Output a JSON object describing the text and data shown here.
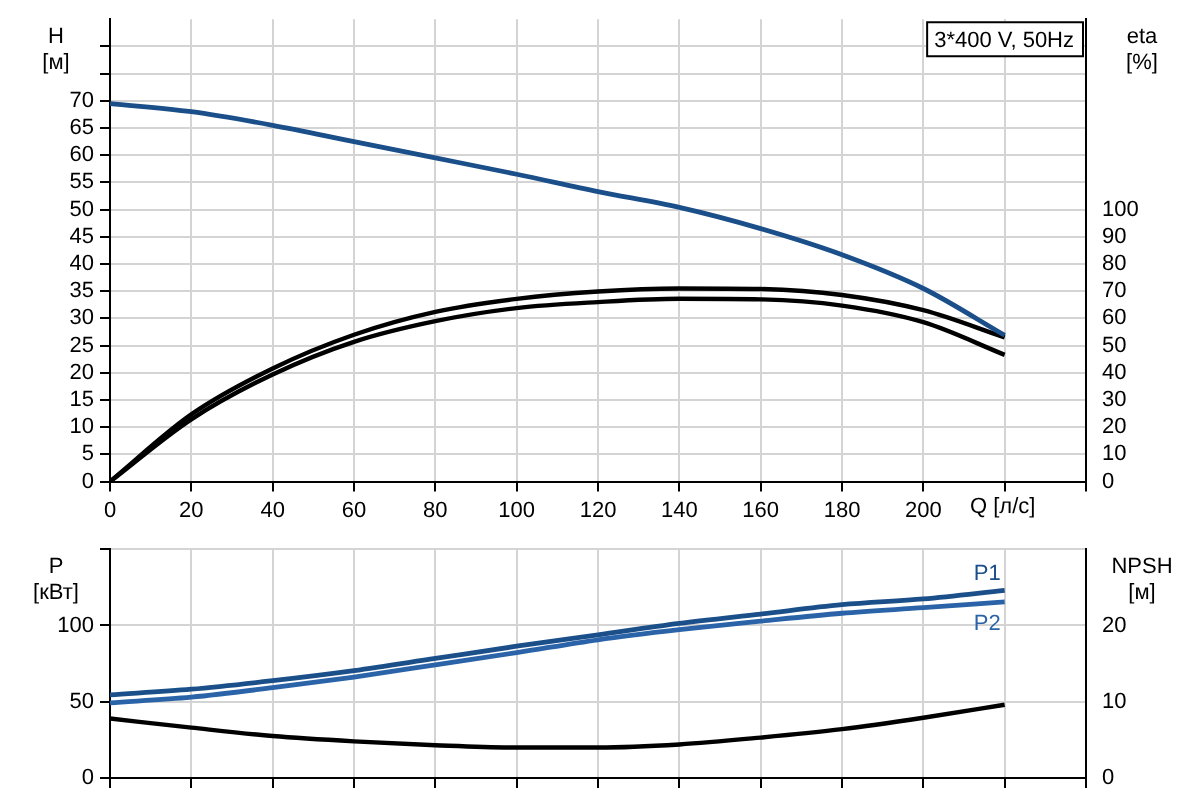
{
  "chart_data": [
    {
      "type": "line",
      "title": "3*400 V, 50Hz",
      "xlabel": "Q [л/с]",
      "ylabel": "H [м]",
      "y2label": "eta [%]",
      "xlim": [
        0,
        240
      ],
      "xticks": [
        0,
        20,
        40,
        60,
        80,
        100,
        120,
        140,
        160,
        180,
        200,
        {
          "value": 220,
          "label": null
        },
        {
          "value": 240,
          "label": null
        }
      ],
      "ylim": [
        0,
        85
      ],
      "yticks": [
        0,
        5,
        10,
        15,
        20,
        25,
        30,
        35,
        40,
        45,
        50,
        55,
        60,
        65,
        70,
        {
          "value": 75,
          "label": null
        },
        {
          "value": 80,
          "label": null
        }
      ],
      "y2lim": [
        0,
        170
      ],
      "y2ticks": [
        0,
        10,
        20,
        30,
        40,
        50,
        60,
        70,
        80,
        90,
        100
      ],
      "grid": true,
      "legend": false,
      "marker": "none",
      "line_style": "solid",
      "series": [
        {
          "color": "#1b4f8a",
          "x": [
            0,
            20,
            40,
            60,
            80,
            100,
            120,
            140,
            160,
            180,
            200,
            220
          ],
          "values": [
            69.5,
            68,
            65.5,
            62.5,
            59.5,
            56.5,
            53.3,
            50.4,
            46.5,
            41.7,
            35.5,
            26.9
          ]
        },
        {
          "color": "#000000",
          "axis": "y2",
          "x": [
            0,
            20,
            40,
            60,
            80,
            100,
            120,
            140,
            160,
            180,
            200,
            220
          ],
          "values": [
            0,
            24.7,
            41.6,
            54,
            62.4,
            67.2,
            69.9,
            71,
            70.8,
            68.6,
            63,
            53
          ]
        },
        {
          "color": "#000000",
          "axis": "y2",
          "x": [
            0,
            20,
            40,
            60,
            80,
            100,
            120,
            140,
            160,
            180,
            200,
            220
          ],
          "values": [
            0,
            22.9,
            39.4,
            51.4,
            59,
            63.8,
            66,
            67.2,
            67,
            64.7,
            58.6,
            46.6
          ]
        }
      ]
    },
    {
      "type": "line",
      "ylabel": "P [кВт]",
      "y2label": "NPSH [м]",
      "xlim": [
        0,
        240
      ],
      "xticks": [
        0,
        20,
        40,
        60,
        80,
        100,
        120,
        140,
        160,
        180,
        200,
        220,
        240
      ],
      "ylim": [
        0,
        150
      ],
      "yticks": [
        0,
        50,
        100,
        {
          "value": 150,
          "label": null
        }
      ],
      "y2lim": [
        0,
        30
      ],
      "y2ticks": [
        0,
        10,
        20
      ],
      "grid": true,
      "legend": false,
      "marker": "none",
      "line_style": "solid",
      "tick_labels": "y",
      "series": [
        {
          "name": "P1",
          "color": "#1b4f8a",
          "x": [
            0,
            20,
            40,
            60,
            80,
            100,
            120,
            140,
            160,
            180,
            200,
            220
          ],
          "values": [
            54.5,
            58.2,
            63.8,
            70.4,
            78.4,
            86.4,
            93.9,
            101.4,
            107.5,
            113.6,
            117.4,
            123
          ]
        },
        {
          "name": "P2",
          "color": "#2a63a8",
          "x": [
            0,
            20,
            40,
            60,
            80,
            100,
            120,
            140,
            160,
            180,
            200,
            220
          ],
          "values": [
            49.3,
            53,
            59.2,
            66.2,
            74.2,
            82.2,
            90.6,
            97.2,
            102.8,
            108,
            111.7,
            115.5
          ]
        },
        {
          "color": "#000000",
          "axis": "y2",
          "x": [
            0,
            20,
            40,
            60,
            80,
            100,
            120,
            140,
            160,
            180,
            200,
            220
          ],
          "values": [
            7.8,
            6.6,
            5.5,
            4.8,
            4.3,
            4,
            4,
            4.4,
            5.3,
            6.4,
            7.9,
            9.6
          ]
        }
      ]
    }
  ]
}
